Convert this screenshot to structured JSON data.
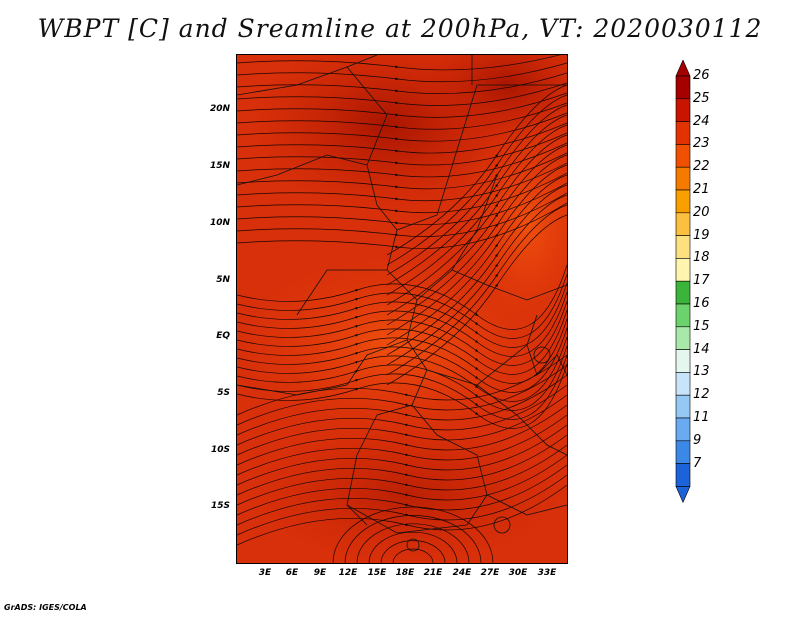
{
  "title": "WBPT [C] and Sreamline at 200hPa, VT: 2020030112",
  "credit": "GrADS: IGES/COLA",
  "map": {
    "description_colors": {
      "dominant": "#d8300a",
      "dark": "#b01a00",
      "light": "#e84a10"
    },
    "y_tick_labels": [
      "20N",
      "15N",
      "10N",
      "5N",
      "EQ",
      "5S",
      "10S",
      "15S"
    ],
    "x_tick_labels": [
      "3E",
      "6E",
      "9E",
      "12E",
      "15E",
      "18E",
      "21E",
      "24E",
      "27E",
      "30E",
      "33E"
    ]
  },
  "colorbar": {
    "labels": [
      "26",
      "25",
      "24",
      "23",
      "22",
      "21",
      "20",
      "19",
      "18",
      "17",
      "16",
      "15",
      "14",
      "13",
      "12",
      "11",
      "9",
      "7"
    ],
    "colors": [
      "#a50000",
      "#c81400",
      "#e23200",
      "#f05000",
      "#f67a00",
      "#f9a000",
      "#fbc040",
      "#fde080",
      "#fff4b0",
      "#3ab43a",
      "#6cd26c",
      "#a8e8a8",
      "#e4f6ee",
      "#c8e4fa",
      "#96c8f4",
      "#6aaaf0",
      "#3c88e6",
      "#1c62d8"
    ]
  }
}
